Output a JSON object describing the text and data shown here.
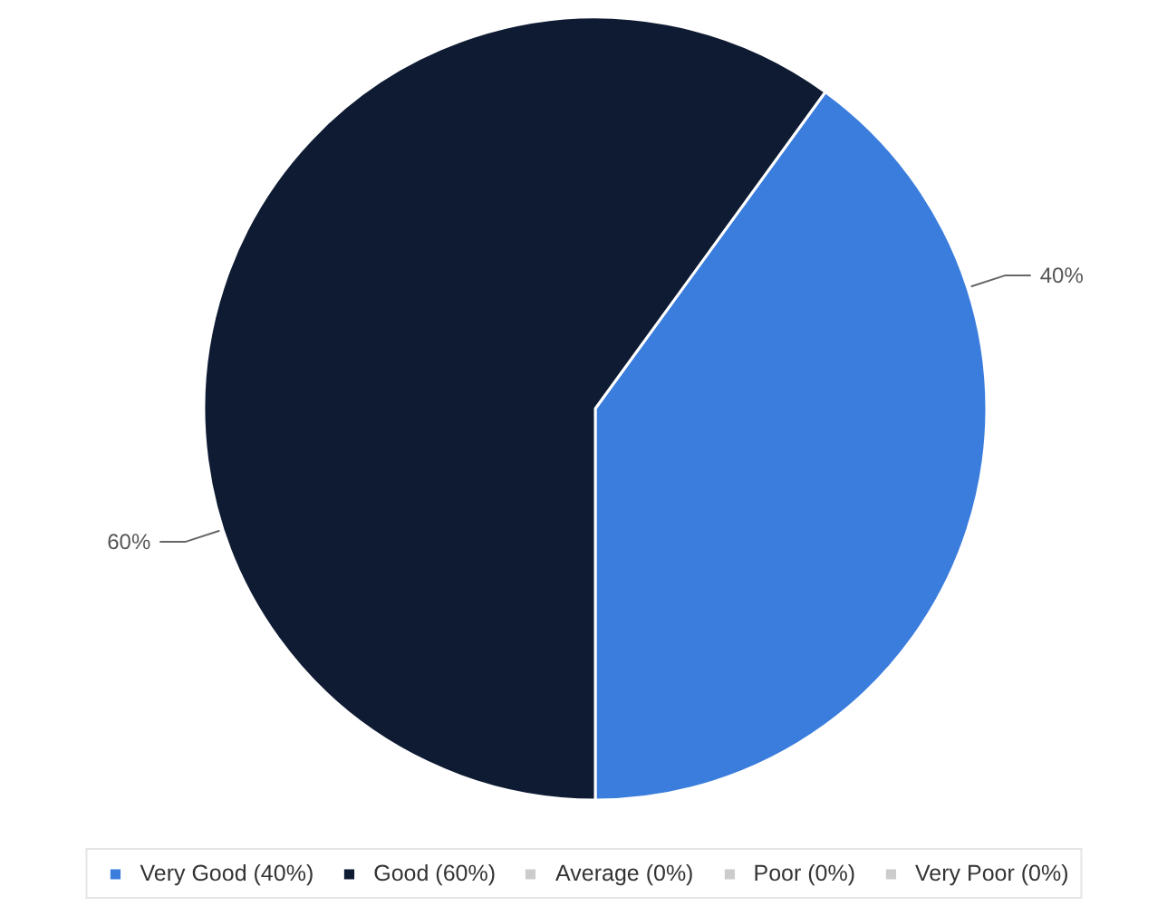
{
  "chart_data": {
    "type": "pie",
    "categories": [
      "Very Good (40%)",
      "Good (60%)",
      "Average (0%)",
      "Poor (0%)",
      "Very Poor (0%)"
    ],
    "values": [
      40,
      60,
      0,
      0,
      0
    ],
    "colors": [
      "#3b7ddd",
      "#0e1b33",
      "#cccccc",
      "#cccccc",
      "#cccccc"
    ],
    "value_labels": [
      "40%",
      "60%",
      null,
      null,
      null
    ],
    "legend": "bottom"
  }
}
